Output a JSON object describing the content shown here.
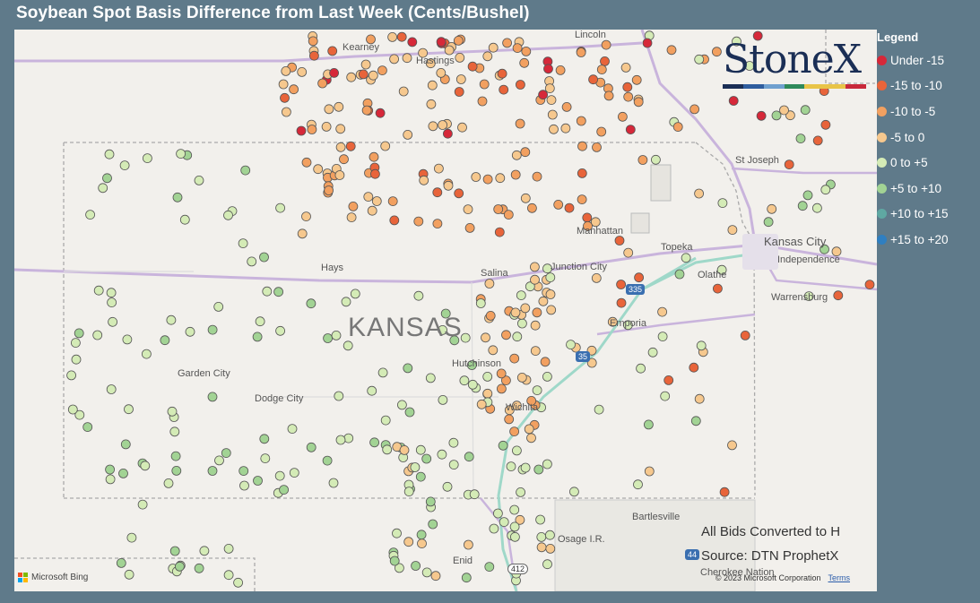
{
  "title": "Soybean Spot Basis Difference from Last Week (Cents/Bushel)",
  "legend": {
    "title": "Legend",
    "items": [
      {
        "label": "Under -15",
        "color": "#d62839"
      },
      {
        "label": "-15 to -10",
        "color": "#e8643a"
      },
      {
        "label": "-10 to -5",
        "color": "#f2a060"
      },
      {
        "label": "-5 to 0",
        "color": "#f6c88e"
      },
      {
        "label": "0 to +5",
        "color": "#d4ebb6"
      },
      {
        "label": "+5 to +10",
        "color": "#a2d394"
      },
      {
        "label": "+10 to +15",
        "color": "#5fa8a2"
      },
      {
        "label": "+15 to +20",
        "color": "#2f7fc1"
      }
    ]
  },
  "logo": {
    "text": "StoneX",
    "bar_colors": [
      "#1a2e55",
      "#2f5d9e",
      "#6fa0cf",
      "#2f8a5a",
      "#e8c447",
      "#e8c447",
      "#c8283a"
    ]
  },
  "map": {
    "state_label": "KANSAS",
    "cities": [
      "Kearney",
      "Hastings",
      "Lincoln",
      "St Joseph",
      "Manhattan",
      "Topeka",
      "Kansas City",
      "Independence",
      "Hays",
      "Salina",
      "Junction City",
      "Olathe",
      "Warrensburg",
      "Emporia",
      "Garden City",
      "Hutchinson",
      "Dodge City",
      "Wichita",
      "Bartlesville",
      "Osage I.R.",
      "Enid",
      "Cherokee Nation"
    ],
    "highways": [
      "335",
      "35",
      "412",
      "44"
    ],
    "notes": {
      "converted": "All Bids Converted to H",
      "source": "Source: DTN ProphetX"
    },
    "bing": "Microsoft Bing",
    "copyright": "© 2023 Microsoft Corporation",
    "terms": "Terms"
  }
}
